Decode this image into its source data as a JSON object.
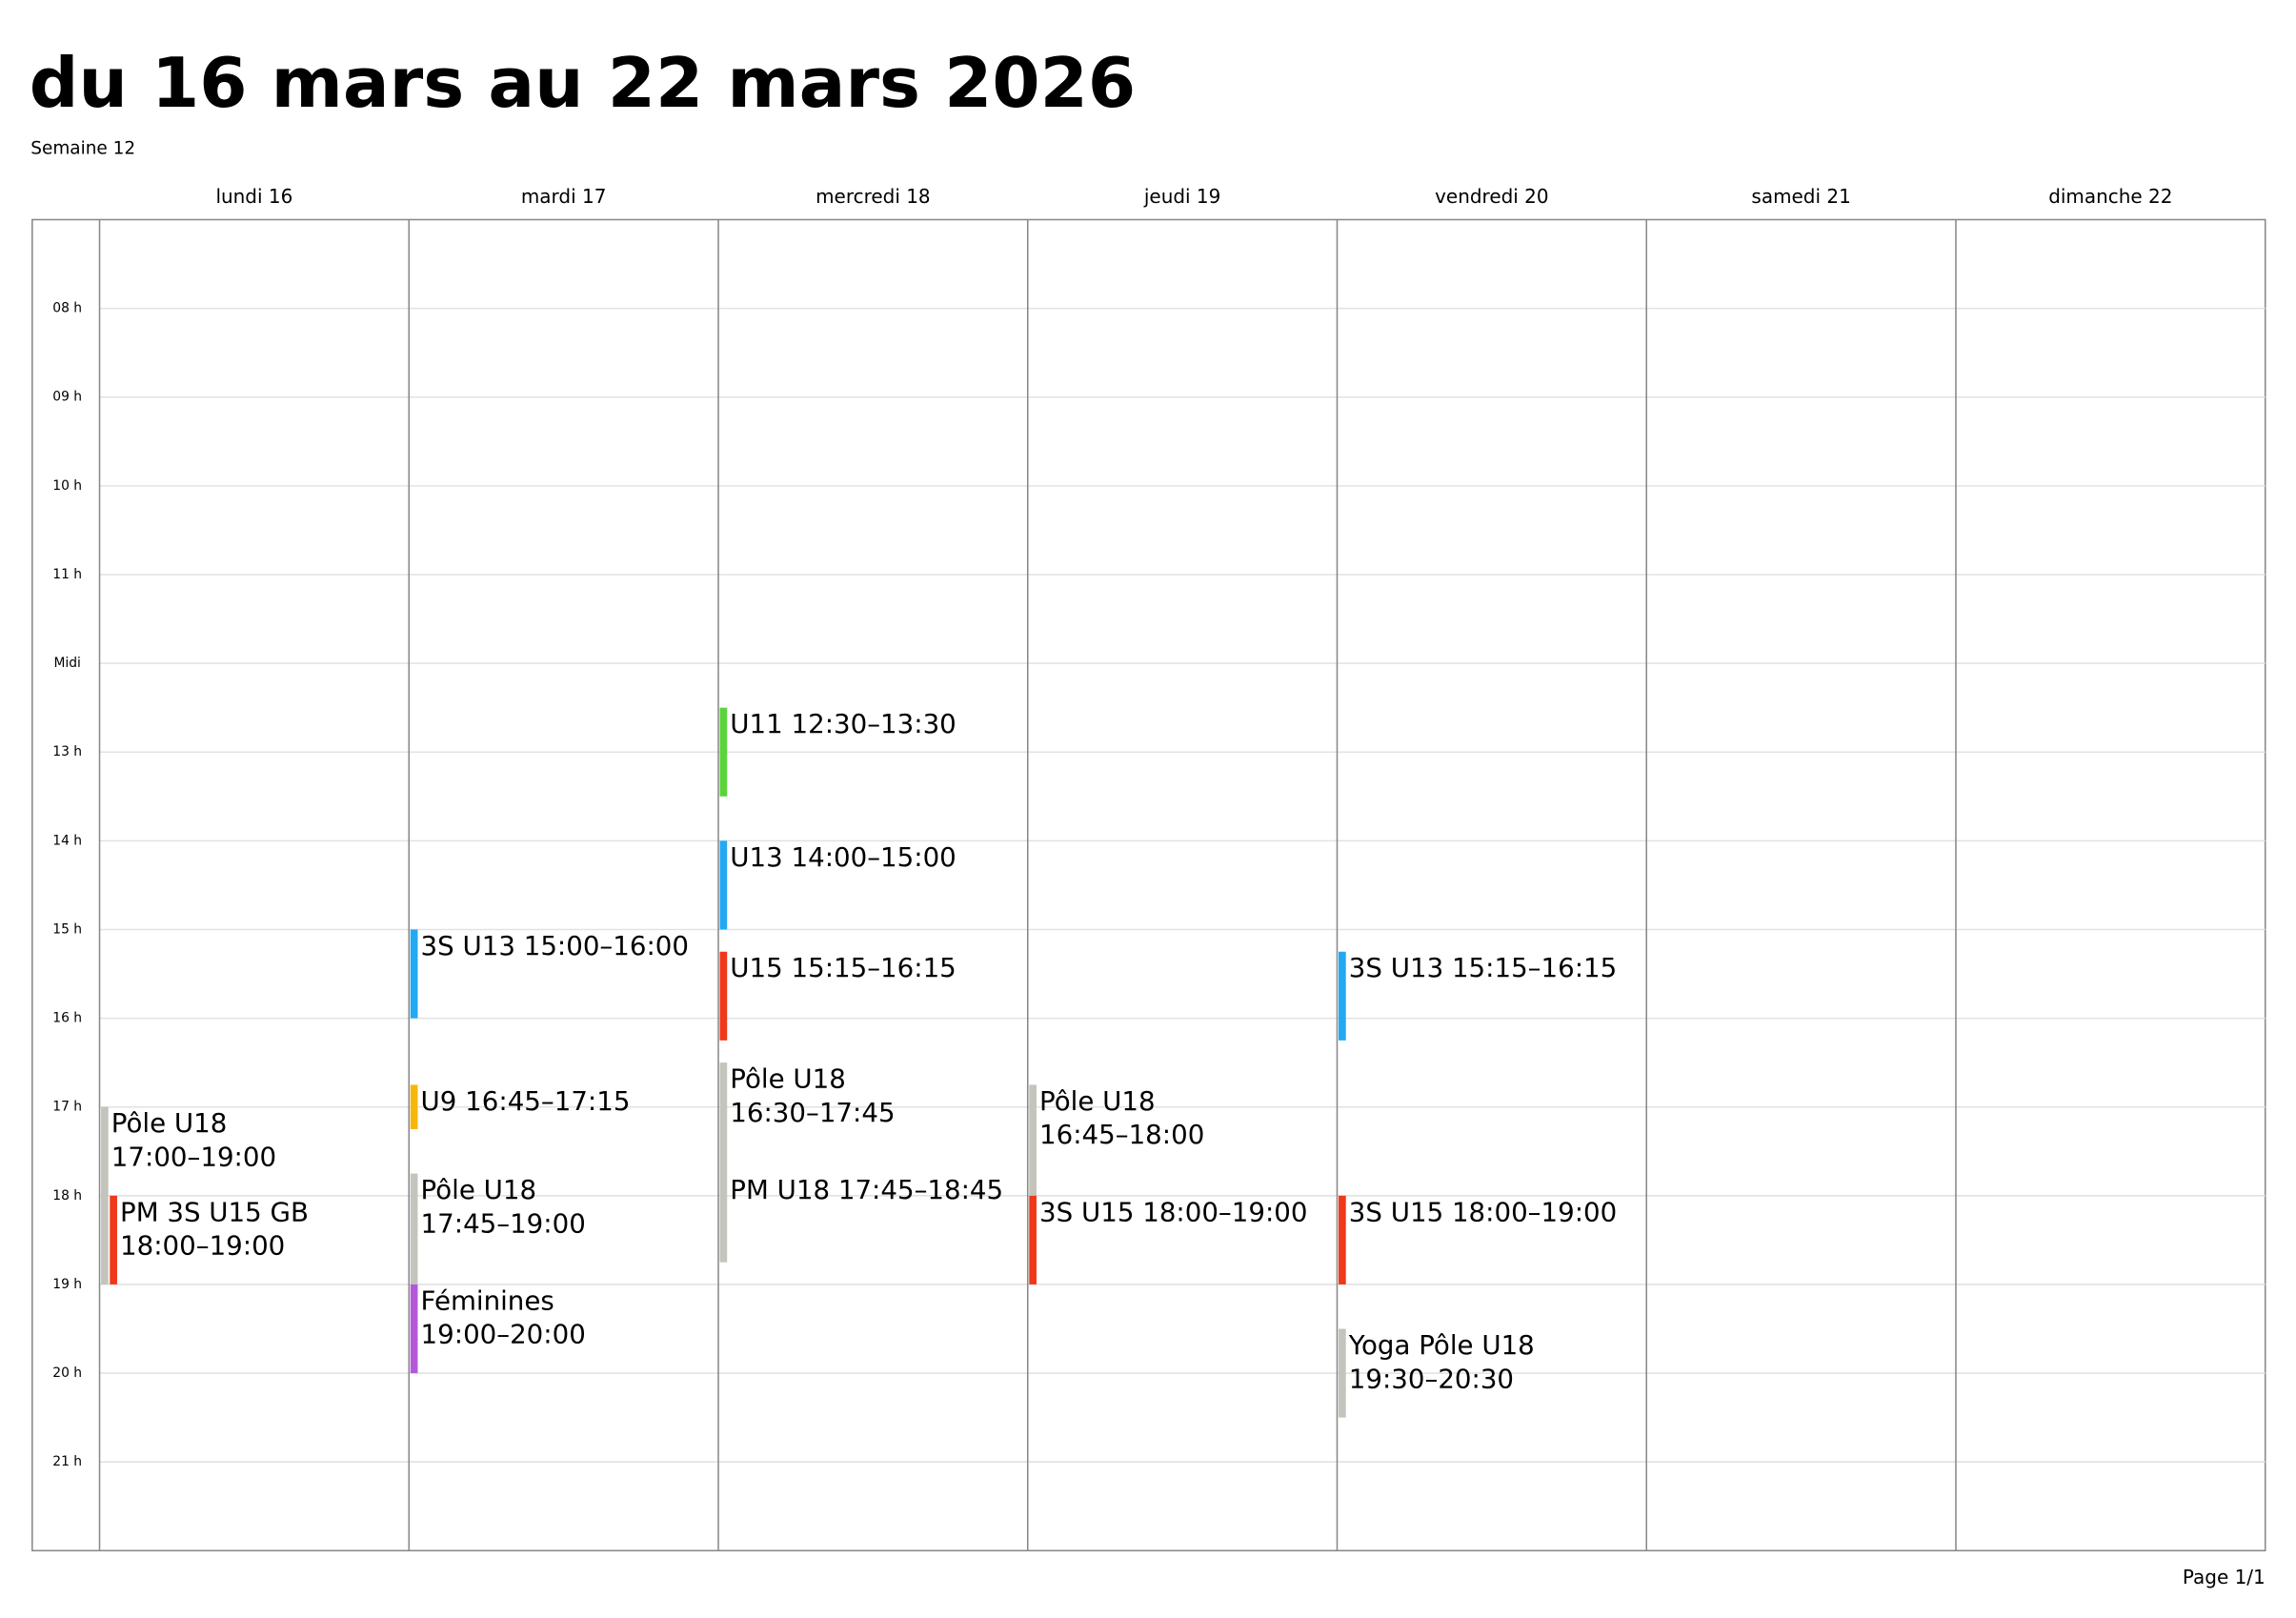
{
  "header": {
    "title": "du 16 mars au 22 mars 2026",
    "subtitle": "Semaine 12"
  },
  "hours": [
    "08 h",
    "09 h",
    "10 h",
    "11 h",
    "Midi",
    "13 h",
    "14 h",
    "15 h",
    "16 h",
    "17 h",
    "18 h",
    "19 h",
    "20 h",
    "21 h"
  ],
  "days": [
    {
      "name": "lundi 16",
      "events": [
        {
          "lines": [
            "Pôle U18",
            "17:00–19:00"
          ],
          "color": "#c4c4bd"
        },
        {
          "lines": [
            "PM 3S U15 GB",
            "18:00–19:00"
          ],
          "color": "#f0381a"
        }
      ]
    },
    {
      "name": "mardi 17",
      "events": [
        {
          "lines": [
            "3S U13 15:00–16:00"
          ],
          "color": "#22a9f2"
        },
        {
          "lines": [
            "U9 16:45–17:15"
          ],
          "color": "#f7b70a"
        },
        {
          "lines": [
            "Pôle U18",
            "17:45–19:00"
          ],
          "color": "#c4c4bd"
        },
        {
          "lines": [
            "Féminines",
            "19:00–20:00"
          ],
          "color": "#b458da"
        }
      ]
    },
    {
      "name": "mercredi 18",
      "events": [
        {
          "lines": [
            "U11 12:30–13:30"
          ],
          "color": "#5ad43a"
        },
        {
          "lines": [
            "U13 14:00–15:00"
          ],
          "color": "#22a9f2"
        },
        {
          "lines": [
            "U15 15:15–16:15"
          ],
          "color": "#f0381a"
        },
        {
          "lines": [
            "Pôle U18",
            "16:30–17:45"
          ],
          "color": "#c4c4bd"
        },
        {
          "lines": [
            "PM U18 17:45–18:45"
          ],
          "color": "#c4c4bd"
        }
      ]
    },
    {
      "name": "jeudi 19",
      "events": [
        {
          "lines": [
            "Pôle U18",
            "16:45–18:00"
          ],
          "color": "#c4c4bd"
        },
        {
          "lines": [
            "3S U15 18:00–19:00"
          ],
          "color": "#f0381a"
        }
      ]
    },
    {
      "name": "vendredi 20",
      "events": [
        {
          "lines": [
            "3S U13 15:15–16:15"
          ],
          "color": "#22a9f2"
        },
        {
          "lines": [
            "3S U15 18:00–19:00"
          ],
          "color": "#f0381a"
        },
        {
          "lines": [
            "Yoga Pôle U18",
            "19:30–20:30"
          ],
          "color": "#c4c4bd"
        }
      ]
    },
    {
      "name": "samedi 21",
      "events": []
    },
    {
      "name": "dimanche 22",
      "events": []
    }
  ],
  "footer": {
    "page": "Page 1/1"
  }
}
